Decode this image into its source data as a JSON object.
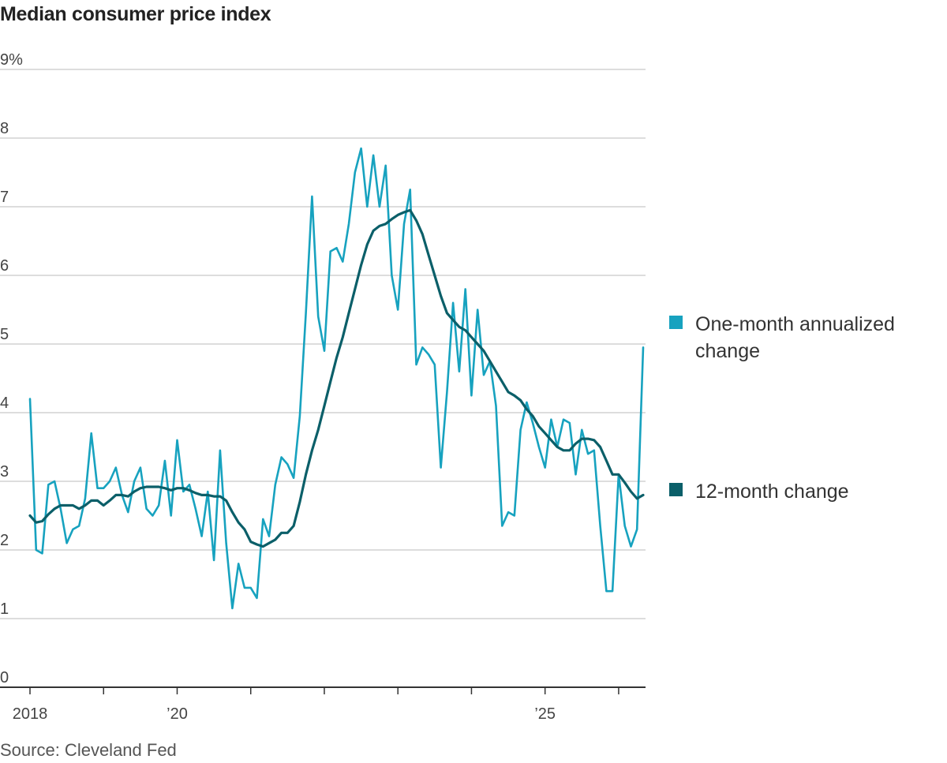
{
  "title": "Median consumer price index",
  "source": "Source: Cleveland Fed",
  "colors": {
    "one_month": "#17a2bf",
    "twelve_month": "#0b5f69",
    "grid": "#dddddd",
    "axis": "#333333"
  },
  "chart_data": {
    "type": "line",
    "title": "Median consumer price index",
    "xlabel": "",
    "ylabel": "",
    "ylim": [
      0,
      9
    ],
    "y_ticks": [
      "0",
      "1",
      "2",
      "3",
      "4",
      "5",
      "6",
      "7",
      "8",
      "9%"
    ],
    "x_range": [
      "2018-01",
      "2026-04"
    ],
    "x_tick_labels": [
      {
        "x": "2018-01",
        "label": "2018"
      },
      {
        "x": "2020-01",
        "label": "’20"
      },
      {
        "x": "2025-01",
        "label": "’25"
      }
    ],
    "x_minor_ticks": [
      "2019-01",
      "2021-01",
      "2022-01",
      "2023-01",
      "2024-01",
      "2026-01"
    ],
    "grid": true,
    "legend_position": "right",
    "series": [
      {
        "name": "One-month annualized change",
        "color": "#17a2bf",
        "start": "2018-01",
        "values": [
          4.2,
          2.0,
          1.95,
          2.95,
          3.0,
          2.6,
          2.1,
          2.3,
          2.35,
          2.75,
          3.7,
          2.9,
          2.9,
          3.0,
          3.2,
          2.8,
          2.55,
          3.0,
          3.2,
          2.6,
          2.5,
          2.65,
          3.3,
          2.5,
          3.6,
          2.85,
          2.95,
          2.6,
          2.2,
          2.85,
          1.85,
          3.45,
          2.1,
          1.15,
          1.8,
          1.45,
          1.45,
          1.3,
          2.45,
          2.2,
          2.95,
          3.35,
          3.25,
          3.05,
          3.95,
          5.45,
          7.15,
          5.4,
          4.9,
          6.35,
          6.4,
          6.2,
          6.75,
          7.5,
          7.85,
          7.0,
          7.75,
          7.0,
          7.6,
          6.0,
          5.5,
          6.75,
          7.25,
          4.7,
          4.95,
          4.85,
          4.7,
          3.2,
          4.3,
          5.6,
          4.6,
          5.8,
          4.25,
          5.5,
          4.55,
          4.75,
          4.1,
          2.35,
          2.55,
          2.5,
          3.75,
          4.15,
          3.85,
          3.5,
          3.2,
          3.9,
          3.5,
          3.9,
          3.85,
          3.1,
          3.75,
          3.4,
          3.45,
          2.35,
          1.4,
          1.4,
          3.1,
          2.35,
          2.05,
          2.3,
          4.95
        ]
      },
      {
        "name": "12-month change",
        "color": "#0b5f69",
        "start": "2018-01",
        "values": [
          2.5,
          2.4,
          2.42,
          2.52,
          2.6,
          2.65,
          2.65,
          2.65,
          2.6,
          2.65,
          2.72,
          2.72,
          2.65,
          2.72,
          2.8,
          2.8,
          2.78,
          2.85,
          2.9,
          2.92,
          2.92,
          2.92,
          2.9,
          2.87,
          2.9,
          2.9,
          2.87,
          2.83,
          2.8,
          2.8,
          2.78,
          2.78,
          2.72,
          2.55,
          2.4,
          2.3,
          2.12,
          2.08,
          2.05,
          2.1,
          2.15,
          2.25,
          2.25,
          2.35,
          2.7,
          3.1,
          3.45,
          3.75,
          4.1,
          4.45,
          4.8,
          5.1,
          5.45,
          5.8,
          6.15,
          6.45,
          6.65,
          6.72,
          6.75,
          6.82,
          6.88,
          6.92,
          6.95,
          6.8,
          6.6,
          6.3,
          6.0,
          5.7,
          5.45,
          5.35,
          5.25,
          5.2,
          5.1,
          5.0,
          4.9,
          4.75,
          4.6,
          4.45,
          4.3,
          4.25,
          4.18,
          4.05,
          3.95,
          3.8,
          3.7,
          3.6,
          3.5,
          3.45,
          3.45,
          3.55,
          3.62,
          3.62,
          3.6,
          3.5,
          3.3,
          3.1,
          3.1,
          2.98,
          2.85,
          2.75,
          2.8
        ]
      }
    ]
  },
  "legend": [
    {
      "label_line1": "One-month annualized",
      "label_line2": "change",
      "color": "#17a2bf"
    },
    {
      "label_line1": "12-month change",
      "label_line2": "",
      "color": "#0b5f69"
    }
  ]
}
